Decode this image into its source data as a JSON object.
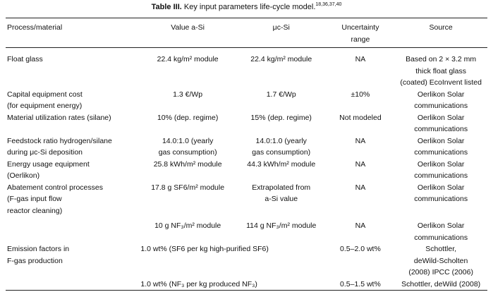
{
  "caption": {
    "label": "Table III.",
    "text": "Key input parameters life-cycle model.",
    "refs": "18,36,37,40"
  },
  "headers": [
    "Process/material",
    "Value a-Si",
    "μc-Si",
    "Uncertainty\nrange",
    "Source"
  ],
  "rows": [
    {
      "process": "Float glass",
      "asi": "22.4 kg/m² module",
      "mcsi": "22.4 kg/m² module",
      "unc": "NA",
      "source": "Based on 2 × 3.2 mm\nthick float glass\n(coated) EcoInvent listed"
    },
    {
      "process": "Capital equipment cost\n(for equipment energy)",
      "asi": "1.3 €/Wp",
      "mcsi": "1.7 €/Wp",
      "unc": "±10%",
      "source": "Oerlikon Solar\ncommunications"
    },
    {
      "process": "Material utilization rates (silane)",
      "asi": "10% (dep. regime)",
      "mcsi": "15% (dep. regime)",
      "unc": "Not modeled",
      "source": "Oerlikon Solar\ncommunications"
    },
    {
      "process": "Feedstock ratio hydrogen/silane\nduring μc-Si deposition",
      "asi": "14.0:1.0 (yearly\ngas consumption)",
      "mcsi": "14.0:1.0 (yearly\ngas consumption)",
      "unc": "NA",
      "source": "Oerlikon Solar\ncommunications"
    },
    {
      "process": "Energy usage equipment\n(Oerlikon)",
      "asi": "25.8 kWh/m² module",
      "mcsi": "44.3 kWh/m² module",
      "unc": "NA",
      "source": "Oerlikon Solar\ncommunications"
    },
    {
      "process": "Abatement control processes\n(F-gas input flow\nreactor cleaning)",
      "asi": "17.8 g SF6/m² module",
      "mcsi": "Extrapolated from\na-Si value",
      "unc": "NA",
      "source": "Oerlikon Solar\ncommunications"
    },
    {
      "process": "",
      "asi": "10 g NF₃/m² module",
      "mcsi": "114 g NF₃/m² module",
      "unc": "NA",
      "source": "Oerlikon Solar\ncommunications"
    },
    {
      "process": "Emission factors in\nF-gas production",
      "asi_span": "1.0 wt% (SF6 per kg high-purified SF6)",
      "unc": "0.5–2.0 wt%",
      "source": "Schottler,\ndeWild-Scholten\n(2008) IPCC (2006)"
    },
    {
      "process": "",
      "asi_span": "1.0 wt% (NF₃ per kg produced NF₃)",
      "unc": "0.5–1.5 wt%",
      "source": "Schottler, deWild (2008)"
    }
  ]
}
